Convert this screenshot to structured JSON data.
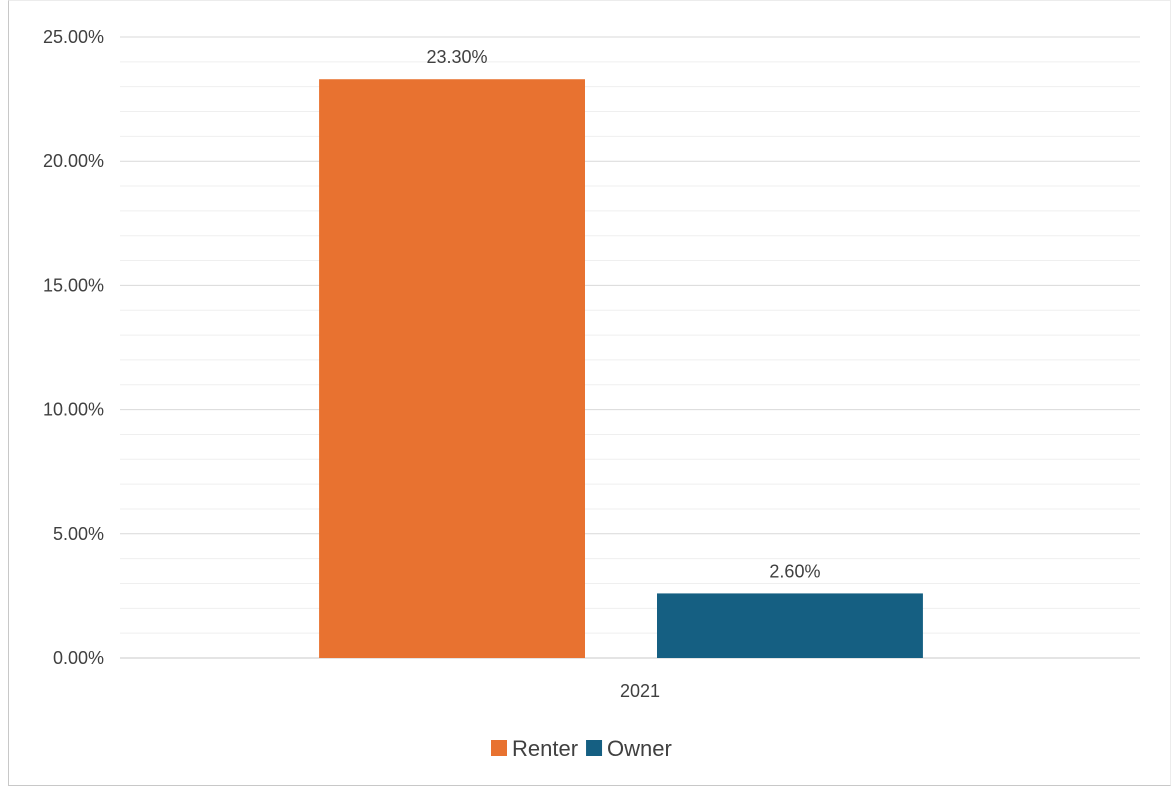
{
  "chart_data": {
    "type": "bar",
    "categories": [
      "2021"
    ],
    "series": [
      {
        "name": "Renter",
        "values": [
          23.3
        ],
        "label": "23.30%",
        "color": "#E87230"
      },
      {
        "name": "Owner",
        "values": [
          2.6
        ],
        "label": "2.60%",
        "color": "#155F82"
      }
    ],
    "title": "",
    "xlabel": "",
    "ylabel": "",
    "ylim": [
      0,
      25
    ],
    "y_ticks": [
      0,
      5,
      10,
      15,
      20,
      25
    ],
    "y_tick_labels": [
      "0.00%",
      "5.00%",
      "10.00%",
      "15.00%",
      "20.00%",
      "25.00%"
    ],
    "major_gridlines": true,
    "minor_gridlines": true,
    "legend_position": "bottom"
  }
}
